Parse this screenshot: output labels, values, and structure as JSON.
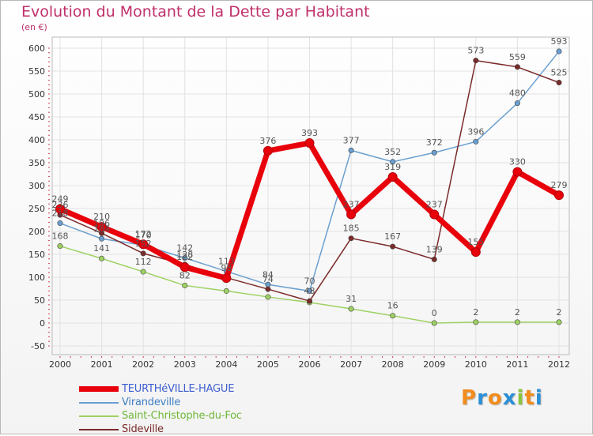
{
  "title": "Evolution du Montant de la Dette par Habitant",
  "subtitle": "(en €)",
  "logo": {
    "text": "Proxiti",
    "letters": [
      "P",
      "r",
      "o",
      "x",
      "i",
      "t",
      "i"
    ],
    "colors": [
      "#f28c1e",
      "#2a8fd6",
      "#f28c1e",
      "#2a8fd6",
      "#8ac43f",
      "#f28c1e",
      "#2a8fd6"
    ]
  },
  "chart_data": {
    "type": "line",
    "title": "Evolution du Montant de la Dette par Habitant",
    "ylabel": "(en €)",
    "x": [
      "2000",
      "2001",
      "2002",
      "2003",
      "2004",
      "2005",
      "2006",
      "2007",
      "2008",
      "2009",
      "2010",
      "2011",
      "2012"
    ],
    "ylim": [
      -50,
      600
    ],
    "yticks": [
      -50,
      0,
      50,
      100,
      150,
      200,
      250,
      300,
      350,
      400,
      450,
      500,
      550,
      600
    ],
    "grid": true,
    "legend": "bottom-left",
    "series": [
      {
        "name": "TEURTHéVILLE-HAGUE",
        "color": "#e8000b",
        "labelColor": "#555555",
        "width": 7,
        "values": [
          249,
          210,
          172,
          122,
          98,
          376,
          393,
          237,
          319,
          237,
          155,
          330,
          279
        ],
        "labels": [
          "249",
          "210",
          "172",
          "122",
          "98",
          "376",
          "393",
          "237",
          "319",
          "237",
          "155",
          "330",
          "279"
        ]
      },
      {
        "name": "Virandeville",
        "color": "#6a9fd0",
        "labelColor": "#555555",
        "width": 1.5,
        "values": [
          218,
          184,
          170,
          142,
          113,
          84,
          70,
          377,
          352,
          372,
          396,
          480,
          593
        ],
        "labels": [
          "218",
          "184",
          "170",
          "142",
          "113",
          "84",
          "70",
          "377",
          "352",
          "372",
          "396",
          "480",
          "593"
        ]
      },
      {
        "name": "Saint-Christophe-du-Foc",
        "color": "#9ed163",
        "labelColor": "#555555",
        "width": 1.5,
        "values": [
          168,
          141,
          112,
          82,
          70,
          57,
          45,
          31,
          16,
          0,
          2,
          2,
          2
        ],
        "labels": [
          "168",
          "141",
          "112",
          "82",
          "",
          "",
          "",
          "31",
          "16",
          "0",
          "2",
          "2",
          "2"
        ]
      },
      {
        "name": "Sideville",
        "color": "#7b2a2a",
        "labelColor": "#555555",
        "width": 1.5,
        "values": [
          236,
          196,
          152,
          128,
          99,
          74,
          48,
          185,
          167,
          139,
          573,
          559,
          525
        ],
        "labels": [
          "236",
          "196",
          "152",
          "128",
          "",
          "74",
          "48",
          "185",
          "167",
          "139",
          "573",
          "559",
          "525"
        ]
      }
    ]
  }
}
